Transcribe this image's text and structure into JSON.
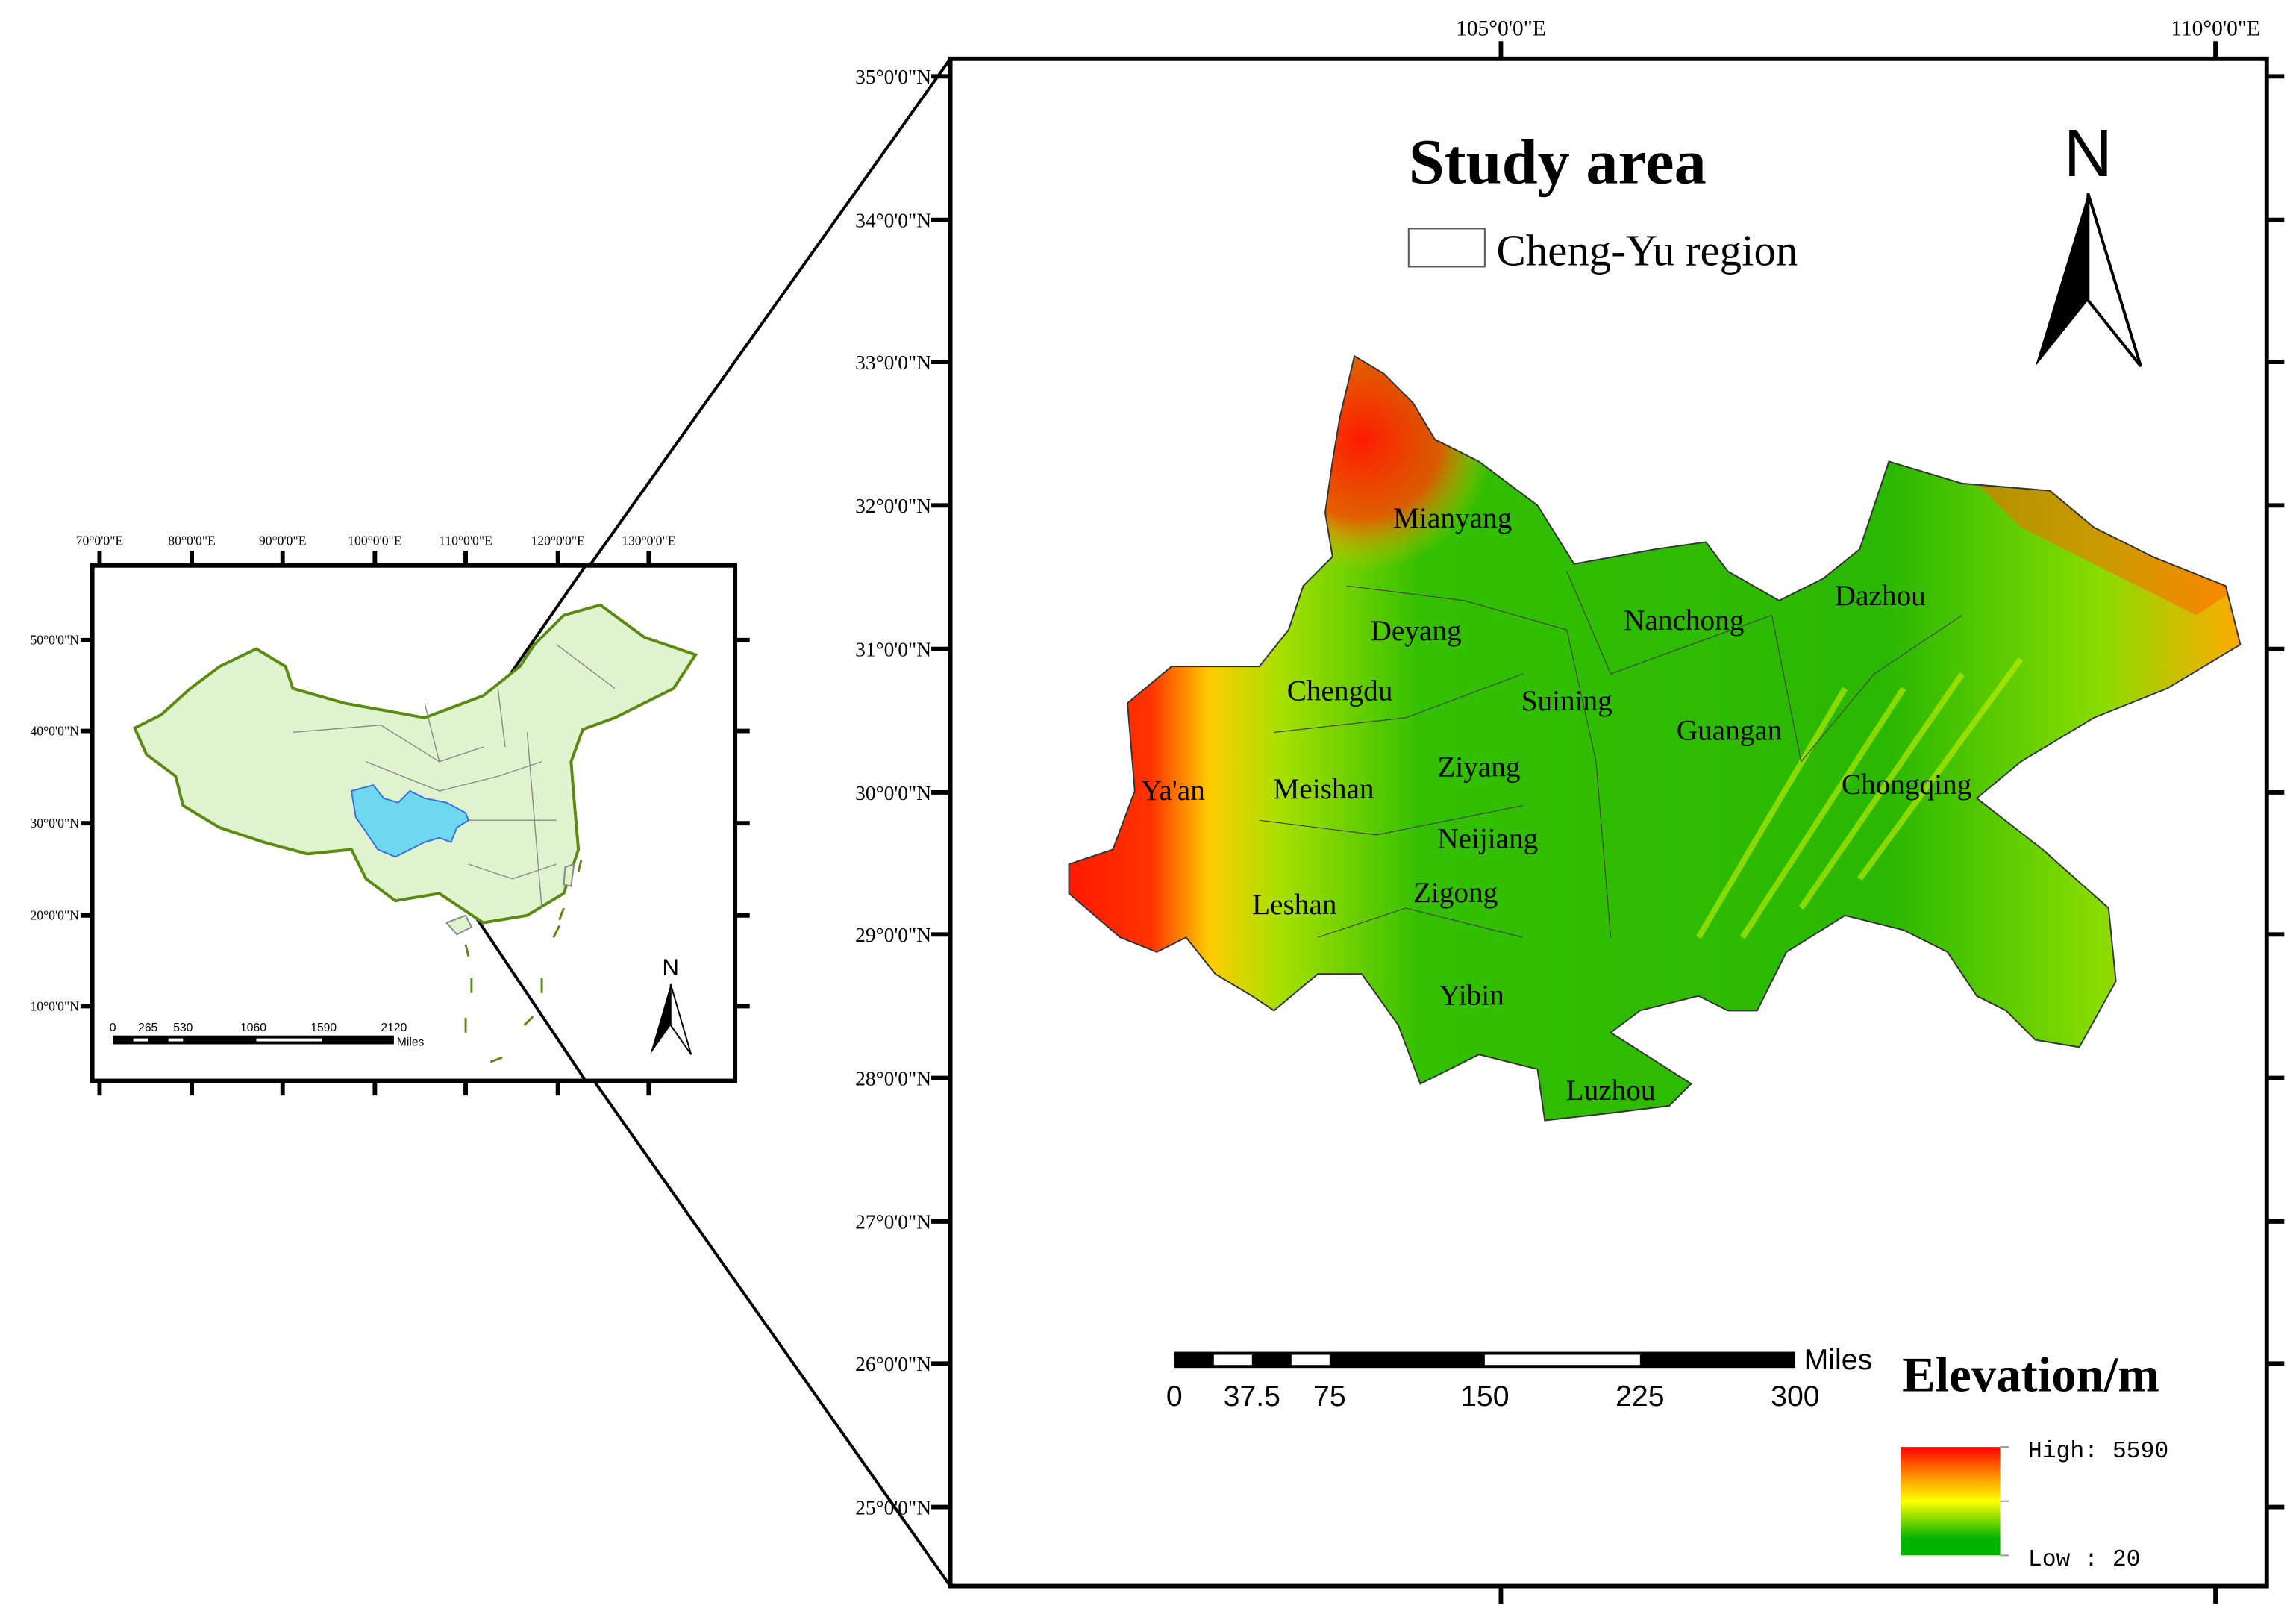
{
  "main_map": {
    "title": "Study area",
    "region_legend_label": "Cheng-Yu region",
    "north_label": "N",
    "lon_labels": [
      "105°0'0\"E",
      "110°0'0\"E"
    ],
    "lat_labels": [
      "35°0'0\"N",
      "34°0'0\"N",
      "33°0'0\"N",
      "32°0'0\"N",
      "31°0'0\"N",
      "30°0'0\"N",
      "29°0'0\"N",
      "28°0'0\"N",
      "27°0'0\"N",
      "26°0'0\"N",
      "25°0'0\"N"
    ],
    "cities": [
      "Mianyang",
      "Deyang",
      "Chengdu",
      "Nanchong",
      "Dazhou",
      "Suining",
      "Guangan",
      "Ziyang",
      "Ya'an",
      "Meishan",
      "Chongqing",
      "Neijiang",
      "Leshan",
      "Zigong",
      "Yibin",
      "Luzhou"
    ],
    "scale_bar": {
      "labels": [
        "0",
        "37.5",
        "75",
        "150",
        "225",
        "300"
      ],
      "unit": "Miles"
    },
    "elevation_legend": {
      "title": "Elevation/m",
      "high_label": "High: 5590",
      "low_label": "Low : 20",
      "colors": {
        "high": "#ff0000",
        "mid": "#ffff00",
        "low": "#00b400"
      }
    }
  },
  "inset_map": {
    "lon_labels": [
      "70°0'0\"E",
      "80°0'0\"E",
      "90°0'0\"E",
      "100°0'0\"E",
      "110°0'0\"E",
      "120°0'0\"E",
      "130°0'0\"E"
    ],
    "lat_labels": [
      "50°0'0\"N",
      "40°0'0\"N",
      "30°0'0\"N",
      "20°0'0\"N",
      "10°0'0\"N"
    ],
    "north_label": "N",
    "scale_bar": {
      "labels": [
        "0",
        "265",
        "530",
        "1060",
        "1590",
        "2120"
      ],
      "unit": "Miles"
    },
    "colors": {
      "country_fill": "#e0f3cf",
      "border": "#5a8a10",
      "highlight": "#6dd8f0"
    }
  }
}
